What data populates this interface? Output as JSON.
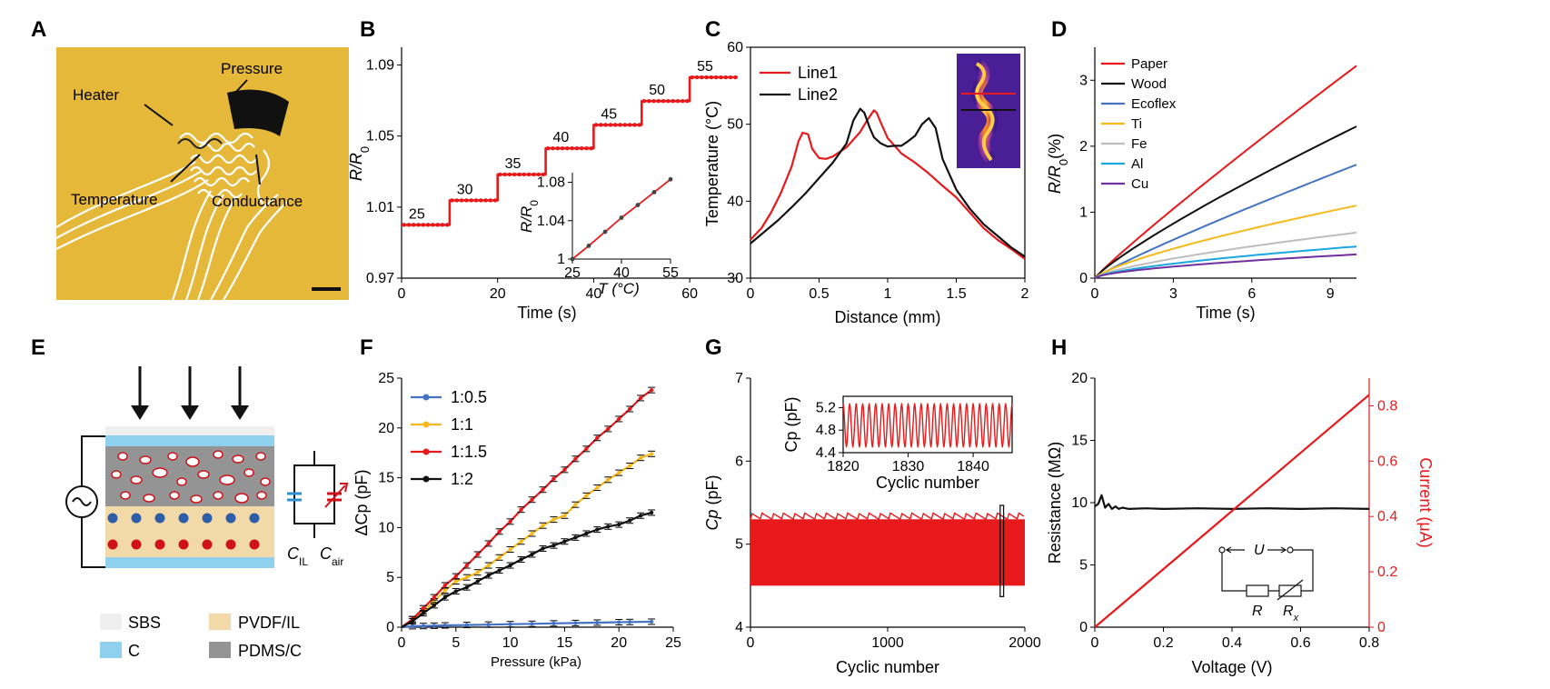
{
  "panels": {
    "A": {
      "label": "A",
      "annotations": {
        "heater": "Heater",
        "pressure": "Pressure",
        "temperature": "Temperature",
        "conductance": "Conductance"
      },
      "colors": {
        "background": "#e5b83a",
        "trace": "#ffffff",
        "pad": "#111111"
      }
    },
    "E": {
      "label": "E",
      "legend": [
        {
          "name": "SBS",
          "color": "#efefef"
        },
        {
          "name": "PVDF/IL",
          "color": "#f2d9a8"
        },
        {
          "name": "C",
          "color": "#8fd0ef"
        },
        {
          "name": "PDMS/C",
          "color": "#949494"
        }
      ],
      "c_il": "C",
      "c_il_sub": "IL",
      "c_air": "C",
      "c_air_sub": "air"
    }
  },
  "chart_data": [
    {
      "id": "B",
      "label": "B",
      "type": "line",
      "xlabel": "Time (s)",
      "ylabel": "R/R0",
      "xlim": [
        0,
        70
      ],
      "ylim": [
        0.97,
        1.1
      ],
      "xticks": [
        0,
        20,
        40,
        60
      ],
      "yticks": [
        0.97,
        1.01,
        1.05,
        1.09
      ],
      "ytick_labels": [
        "0.97",
        "1.01",
        "1.05",
        "1.09"
      ],
      "color": "#e8191b",
      "steps": [
        {
          "x0": 0,
          "x1": 10,
          "y": 1.0,
          "label": "25"
        },
        {
          "x0": 10,
          "x1": 20,
          "y": 1.0138,
          "label": "30"
        },
        {
          "x0": 20,
          "x1": 30,
          "y": 1.0284,
          "label": "35"
        },
        {
          "x0": 30,
          "x1": 40,
          "y": 1.0431,
          "label": "40"
        },
        {
          "x0": 40,
          "x1": 50,
          "y": 1.0563,
          "label": "45"
        },
        {
          "x0": 50,
          "x1": 60,
          "y": 1.0697,
          "label": "50"
        },
        {
          "x0": 60,
          "x1": 70,
          "y": 1.0831,
          "label": "55"
        }
      ],
      "inset": {
        "xlabel": "T (°C)",
        "ylabel": "R/R0",
        "xlim": [
          25,
          55
        ],
        "ylim": [
          1.0,
          1.09
        ],
        "xticks": [
          25,
          40,
          55
        ],
        "yticks": [
          1.0,
          1.04,
          1.08
        ],
        "ytick_labels": [
          "1",
          "1.04",
          "1.08"
        ],
        "x": [
          25,
          30,
          35,
          40,
          45,
          50,
          55
        ],
        "y": [
          1.0,
          1.0138,
          1.0284,
          1.0431,
          1.0563,
          1.0697,
          1.0831
        ]
      }
    },
    {
      "id": "C",
      "label": "C",
      "type": "line",
      "xlabel": "Distance (mm)",
      "ylabel": "Temperature (°C)",
      "xlim": [
        0,
        2
      ],
      "ylim": [
        30,
        60
      ],
      "xticks": [
        0,
        0.5,
        1,
        1.5,
        2
      ],
      "xtick_labels": [
        "0",
        "0.5",
        "1",
        "1.5",
        "2"
      ],
      "yticks": [
        30,
        40,
        50,
        60
      ],
      "legend": "top-left",
      "series": [
        {
          "name": "Line1",
          "color": "#e8191b",
          "x": [
            0,
            0.08,
            0.15,
            0.22,
            0.3,
            0.35,
            0.38,
            0.42,
            0.45,
            0.5,
            0.55,
            0.6,
            0.7,
            0.8,
            0.85,
            0.9,
            0.92,
            0.95,
            1.0,
            1.1,
            1.2,
            1.3,
            1.4,
            1.5,
            1.6,
            1.7,
            1.8,
            1.9,
            2.0
          ],
          "y": [
            35,
            36.5,
            38.5,
            41,
            44.5,
            47.8,
            48.9,
            48.7,
            46.8,
            45.6,
            45.5,
            45.8,
            47,
            49,
            50.5,
            51.8,
            51.5,
            50.2,
            48.2,
            46.2,
            45,
            43.6,
            42,
            40.5,
            38.5,
            36.5,
            35,
            33.8,
            32.5
          ]
        },
        {
          "name": "Line2",
          "color": "#111111",
          "x": [
            0,
            0.1,
            0.2,
            0.3,
            0.4,
            0.5,
            0.6,
            0.7,
            0.75,
            0.8,
            0.83,
            0.87,
            0.9,
            0.95,
            1.0,
            1.05,
            1.1,
            1.15,
            1.2,
            1.25,
            1.3,
            1.35,
            1.4,
            1.5,
            1.6,
            1.7,
            1.8,
            1.9,
            2.0
          ],
          "y": [
            34.5,
            36,
            37.5,
            39.2,
            41,
            43,
            45,
            47.5,
            50.5,
            52,
            51.5,
            49.5,
            48.3,
            47.5,
            47.1,
            47.2,
            47.2,
            47.8,
            48.5,
            50,
            50.8,
            49.5,
            45.5,
            41.5,
            39,
            37,
            35.5,
            34,
            32.8
          ]
        }
      ],
      "inset_image": {
        "line_colors": [
          "#e8191b",
          "#111111"
        ]
      }
    },
    {
      "id": "D",
      "label": "D",
      "type": "line",
      "xlabel": "Time (s)",
      "ylabel": "R/R0(%)",
      "xlim": [
        0,
        10
      ],
      "ylim": [
        0,
        3.5
      ],
      "xticks": [
        0,
        3,
        6,
        9
      ],
      "yticks": [
        0,
        1,
        2,
        3
      ],
      "legend": "top-left",
      "series": [
        {
          "name": "Paper",
          "color": "#e8191b",
          "end": 3.22,
          "shape": 0.93
        },
        {
          "name": "Wood",
          "color": "#111111",
          "end": 2.3,
          "shape": 0.85
        },
        {
          "name": "Ecoflex",
          "color": "#4472c4",
          "end": 1.72,
          "shape": 0.9
        },
        {
          "name": "Ti",
          "color": "#f5b91c",
          "end": 1.1,
          "shape": 0.75
        },
        {
          "name": "Fe",
          "color": "#bdbdbd",
          "end": 0.69,
          "shape": 0.7
        },
        {
          "name": "Al",
          "color": "#1ca7e0",
          "end": 0.48,
          "shape": 0.65
        },
        {
          "name": "Cu",
          "color": "#7030a0",
          "end": 0.36,
          "shape": 0.6
        }
      ]
    },
    {
      "id": "F",
      "label": "F",
      "type": "line",
      "xlabel": "Pressure (kPa)",
      "ylabel": "ΔCp (pF)",
      "xlim": [
        0,
        25
      ],
      "ylim": [
        0,
        25
      ],
      "xticks": [
        0,
        5,
        10,
        15,
        20,
        25
      ],
      "yticks": [
        0,
        5,
        10,
        15,
        20,
        25
      ],
      "legend": "top-left",
      "series": [
        {
          "name": "1:0.5",
          "color": "#4472c4",
          "x": [
            0,
            1,
            2,
            3,
            4,
            6,
            8,
            10,
            12,
            14,
            16,
            18,
            20,
            21,
            23
          ],
          "y": [
            0,
            0.1,
            0.12,
            0.15,
            0.18,
            0.22,
            0.26,
            0.3,
            0.34,
            0.38,
            0.42,
            0.46,
            0.5,
            0.52,
            0.55
          ]
        },
        {
          "name": "1:1",
          "color": "#f5b91c",
          "x": [
            0,
            1,
            2,
            3,
            4,
            5,
            6,
            7,
            8,
            9,
            10,
            11,
            12,
            13,
            14,
            15,
            16,
            17,
            18,
            19,
            20,
            21,
            22,
            23
          ],
          "y": [
            0,
            0.8,
            1.6,
            2.6,
            3.7,
            4.6,
            5.0,
            5.5,
            6.2,
            7.0,
            7.8,
            8.6,
            9.4,
            10.2,
            10.8,
            11.2,
            12.3,
            13.2,
            14.0,
            14.8,
            15.5,
            16.2,
            17.0,
            17.4
          ]
        },
        {
          "name": "1:1.5",
          "color": "#e8191b",
          "x": [
            0,
            1,
            2,
            3,
            4,
            5,
            6,
            7,
            8,
            9,
            10,
            11,
            12,
            13,
            14,
            15,
            16,
            17,
            18,
            19,
            20,
            21,
            22,
            23
          ],
          "y": [
            0,
            0.8,
            1.9,
            3.0,
            4.2,
            5.1,
            6.2,
            7.3,
            8.4,
            9.6,
            10.6,
            11.8,
            12.8,
            13.8,
            14.9,
            15.8,
            16.9,
            17.9,
            19.0,
            19.9,
            20.9,
            21.9,
            23.0,
            23.8
          ]
        },
        {
          "name": "1:2",
          "color": "#111111",
          "x": [
            0,
            1,
            2,
            3,
            4,
            5,
            6,
            7,
            8,
            9,
            10,
            11,
            12,
            13,
            14,
            15,
            16,
            17,
            18,
            19,
            20,
            21,
            22,
            23
          ],
          "y": [
            0,
            0.6,
            1.4,
            2.2,
            3.0,
            3.6,
            4.0,
            4.6,
            5.2,
            5.7,
            6.2,
            6.8,
            7.3,
            7.9,
            8.2,
            8.6,
            9.0,
            9.4,
            9.8,
            10.1,
            10.3,
            10.7,
            11.2,
            11.5
          ]
        }
      ]
    },
    {
      "id": "G",
      "label": "G",
      "type": "area",
      "xlabel": "Cyclic number",
      "ylabel": "Cp (pF)",
      "xlim": [
        0,
        2000
      ],
      "ylim": [
        4,
        7
      ],
      "xticks": [
        0,
        1000,
        2000
      ],
      "yticks": [
        4,
        5,
        6,
        7
      ],
      "color": "#e8191b",
      "band": {
        "min": 4.5,
        "max": 5.3,
        "peak": 5.38
      },
      "highlight_box": {
        "x0": 1820,
        "x1": 1845
      },
      "inset": {
        "xlabel": "Cyclic number",
        "ylabel": "Cp (pF)",
        "xlim": [
          1820,
          1846
        ],
        "ylim": [
          4.4,
          5.4
        ],
        "xticks": [
          1820,
          1830,
          1840
        ],
        "yticks": [
          4.4,
          4.8,
          5.2
        ],
        "ytick_labels": [
          "4.4",
          "4.8",
          "5.2"
        ],
        "cycles": 26,
        "min": 4.5,
        "max": 5.27
      }
    },
    {
      "id": "H",
      "label": "H",
      "type": "line",
      "xlabel": "Voltage (V)",
      "ylabel": "Resistance (MΩ)",
      "y2label": "Current (μA)",
      "xlim": [
        0,
        0.8
      ],
      "ylim": [
        0,
        20
      ],
      "y2lim": [
        0,
        0.9
      ],
      "xticks": [
        0,
        0.2,
        0.4,
        0.6,
        0.8
      ],
      "xtick_labels": [
        "0",
        "0.2",
        "0.4",
        "0.6",
        "0.8"
      ],
      "yticks": [
        0,
        5,
        10,
        15,
        20
      ],
      "y2ticks": [
        0,
        0.2,
        0.4,
        0.6,
        0.8
      ],
      "y2tick_labels": [
        "0",
        "0.2",
        "0.4",
        "0.6",
        "0.8"
      ],
      "series": [
        {
          "name": "Resistance",
          "axis": "left",
          "color": "#111111",
          "x": [
            0,
            0.01,
            0.02,
            0.03,
            0.04,
            0.05,
            0.06,
            0.07,
            0.08,
            0.1,
            0.15,
            0.2,
            0.3,
            0.4,
            0.5,
            0.6,
            0.7,
            0.8
          ],
          "y": [
            9.7,
            9.9,
            10.6,
            9.6,
            9.9,
            9.5,
            9.7,
            9.5,
            9.6,
            9.5,
            9.55,
            9.5,
            9.55,
            9.5,
            9.55,
            9.5,
            9.55,
            9.5
          ]
        },
        {
          "name": "Current",
          "axis": "right",
          "color": "#e8191b",
          "x": [
            0,
            0.1,
            0.2,
            0.3,
            0.4,
            0.5,
            0.6,
            0.7,
            0.8
          ],
          "y": [
            0,
            0.105,
            0.21,
            0.315,
            0.42,
            0.525,
            0.63,
            0.735,
            0.84
          ]
        }
      ],
      "circuit": {
        "voltage": "U",
        "resistor": "R",
        "variable_resistor": "R",
        "variable_sub": "x"
      }
    }
  ]
}
